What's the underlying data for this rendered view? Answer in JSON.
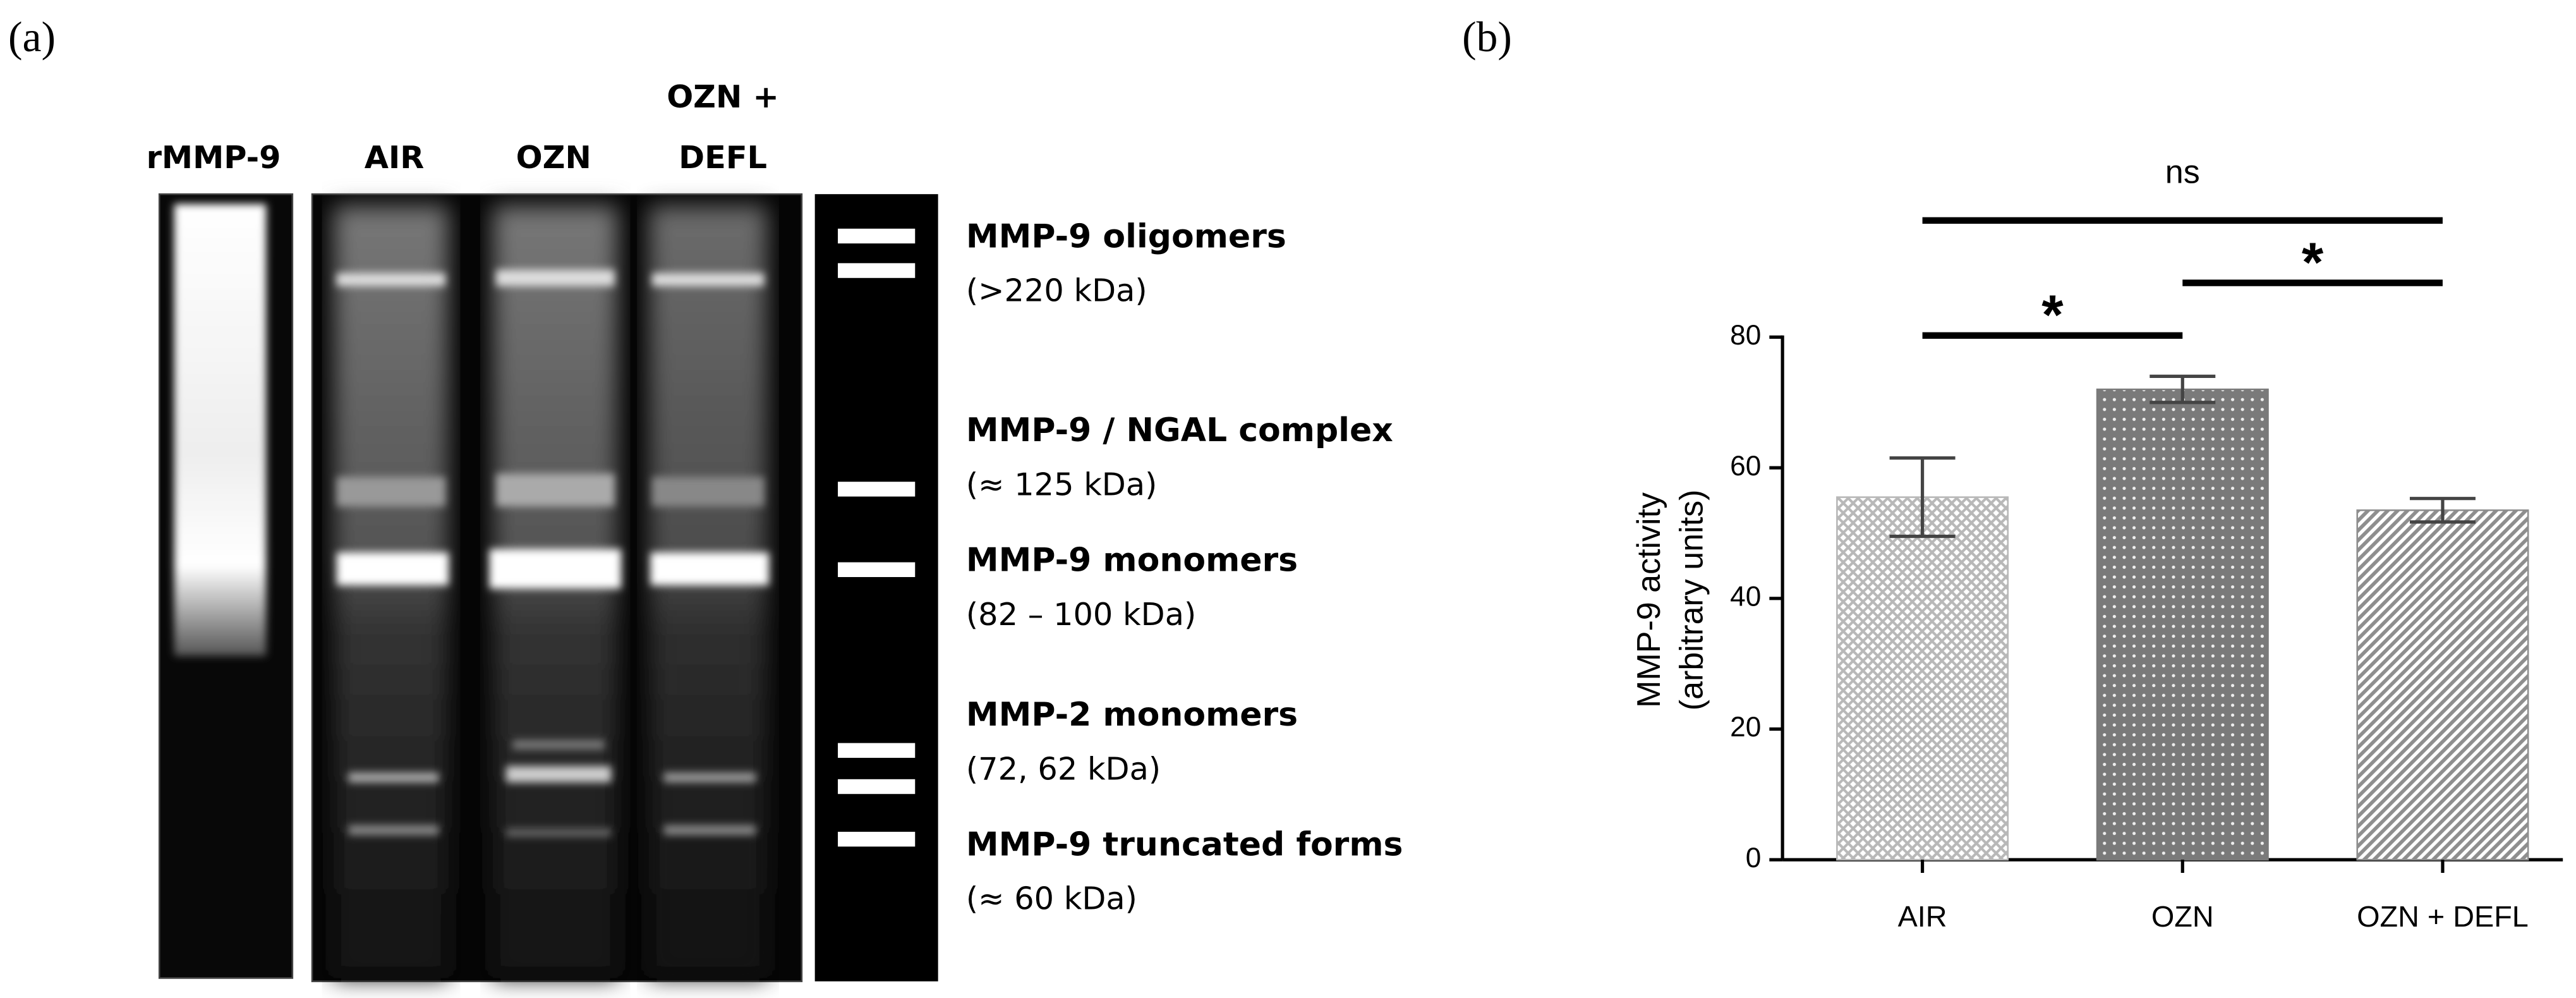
{
  "panel_a": {
    "label": "(a)",
    "lanes": [
      [
        "rMMP-9"
      ],
      [
        "AIR"
      ],
      [
        "OZN"
      ],
      [
        "OZN +",
        "DEFL"
      ]
    ],
    "bands": [
      {
        "name": "MMP-9 oligomers",
        "size": "(>220 kDa)"
      },
      {
        "name": "MMP-9 / NGAL complex",
        "size": "(≈ 125 kDa)"
      },
      {
        "name": "MMP-9 monomers",
        "size": "(82 – 100 kDa)"
      },
      {
        "name": "MMP-2 monomers",
        "size": "(72, 62 kDa)"
      },
      {
        "name": "MMP-9 truncated forms",
        "size": "(≈ 60 kDa)"
      }
    ]
  },
  "chart_data": {
    "type": "bar",
    "panel_label": "(b)",
    "categories": [
      "AIR",
      "OZN",
      "OZN + DEFL"
    ],
    "values": [
      55.5,
      72,
      53.5
    ],
    "errors": [
      6,
      2,
      1.8
    ],
    "colors": [
      "#b8b8b8",
      "#7a7a7a",
      "#8e8e8e"
    ],
    "ylabel": [
      "MMP-9 activity",
      "(arbitrary units)"
    ],
    "ylim": [
      0,
      80
    ],
    "yticks": [
      0,
      20,
      40,
      60,
      80
    ],
    "significance": [
      {
        "from": 0,
        "to": 1,
        "label": "*"
      },
      {
        "from": 1,
        "to": 2,
        "label": "*"
      },
      {
        "from": 0,
        "to": 2,
        "label": "ns"
      }
    ]
  }
}
